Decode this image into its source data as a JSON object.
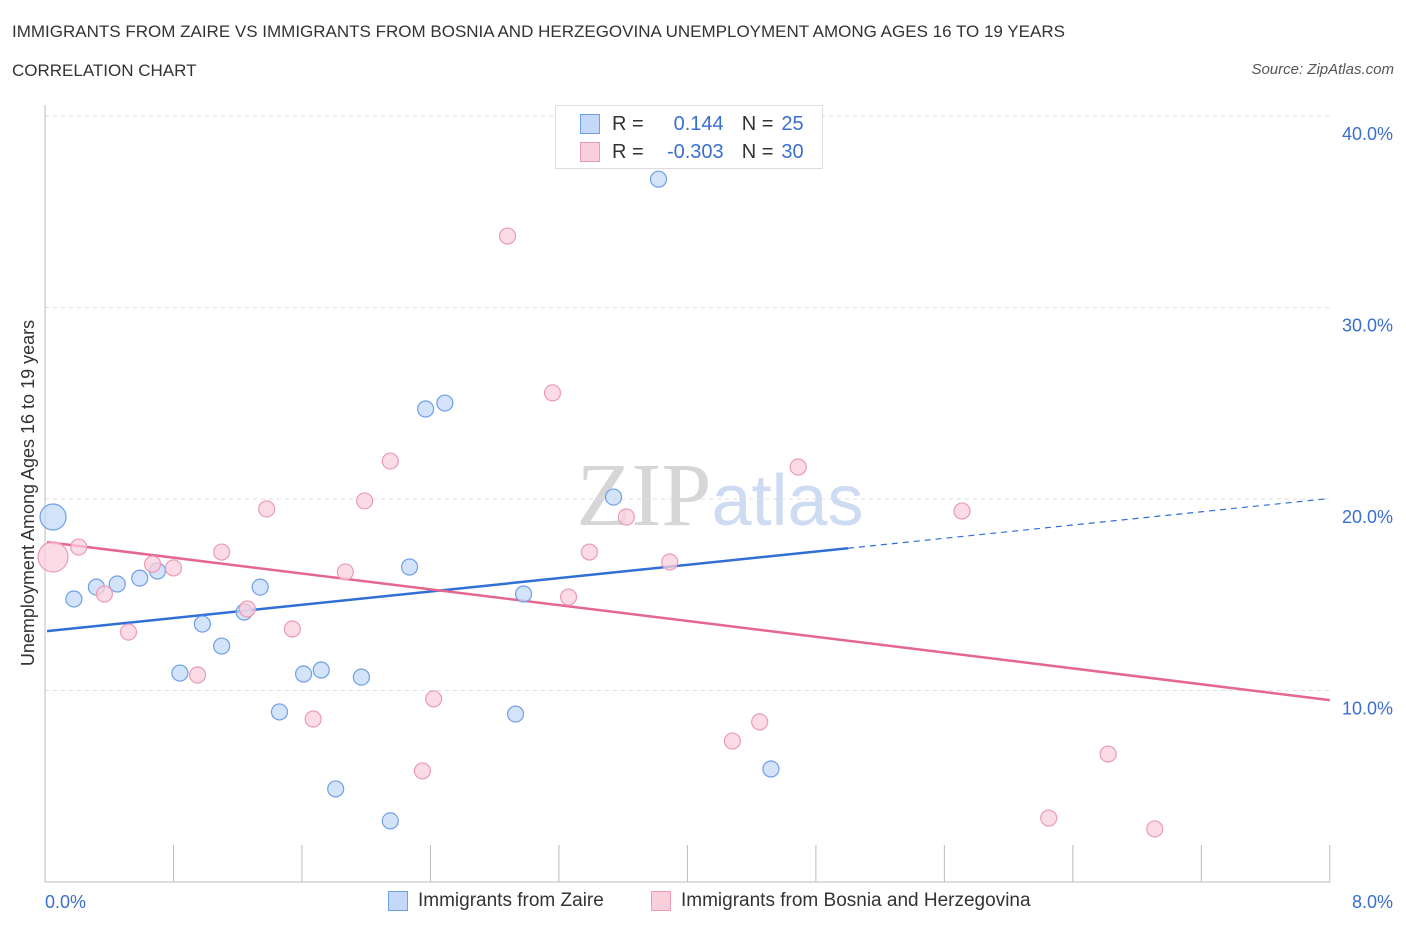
{
  "title": "IMMIGRANTS FROM ZAIRE VS IMMIGRANTS FROM BOSNIA AND HERZEGOVINA UNEMPLOYMENT AMONG AGES 16 TO 19 YEARS",
  "subtitle": "CORRELATION CHART",
  "source": "Source: ZipAtlas.com",
  "watermark": "ZIPatlas",
  "legend": [
    {
      "r_label": "R =",
      "r": "0.144",
      "n_label": "N =",
      "n": "25"
    },
    {
      "r_label": "R =",
      "r": "-0.303",
      "n_label": "N =",
      "n": "30"
    }
  ],
  "chart_data": {
    "type": "scatter",
    "title": "IMMIGRANTS FROM ZAIRE VS IMMIGRANTS FROM BOSNIA AND HERZEGOVINA UNEMPLOYMENT AMONG AGES 16 TO 19 YEARS",
    "ylabel": "Unemployment Among Ages 16 to 19 years",
    "xlabel": "",
    "xlim": [
      0,
      8
    ],
    "ylim": [
      0,
      40
    ],
    "x_tick_labels": [
      "0.0%",
      "8.0%"
    ],
    "y_tick_labels": [
      "10.0%",
      "20.0%",
      "30.0%",
      "40.0%"
    ],
    "y_ticks": [
      10,
      20,
      30,
      40
    ],
    "grid": true,
    "legend_placement": "bottom",
    "series": [
      {
        "name": "Immigrants from Zaire",
        "color": "#6f9fe8",
        "fill": "#c4d9f7",
        "line_color": "#2f6fd6",
        "trend": {
          "x0": 0,
          "y0": 13.1,
          "x_solid_end": 5.0,
          "x1": 7.97,
          "y1": 20.0
        },
        "points": [
          [
            0.05,
            19.06
          ],
          [
            0.18,
            14.78
          ],
          [
            0.32,
            15.4
          ],
          [
            0.45,
            15.56
          ],
          [
            0.59,
            15.87
          ],
          [
            0.7,
            16.24
          ],
          [
            0.84,
            10.91
          ],
          [
            0.98,
            13.47
          ],
          [
            1.1,
            12.32
          ],
          [
            1.24,
            14.1
          ],
          [
            1.34,
            15.4
          ],
          [
            1.46,
            8.88
          ],
          [
            1.61,
            10.86
          ],
          [
            1.72,
            11.07
          ],
          [
            1.81,
            4.86
          ],
          [
            1.97,
            10.7
          ],
          [
            2.15,
            3.19
          ],
          [
            2.27,
            16.45
          ],
          [
            2.37,
            24.7
          ],
          [
            2.49,
            25.01
          ],
          [
            2.93,
            8.77
          ],
          [
            2.98,
            15.04
          ],
          [
            3.54,
            20.1
          ],
          [
            3.82,
            36.7
          ],
          [
            4.52,
            5.9
          ]
        ]
      },
      {
        "name": "Immigrants from Bosnia and Herzegovina",
        "color": "#ec9ab5",
        "fill": "#f9cfdc",
        "line_color": "#e5668f",
        "trend": {
          "x0": 0,
          "y0": 17.75,
          "x1": 8.0,
          "y1": 9.5
        },
        "points": [
          [
            0.05,
            16.97
          ],
          [
            0.21,
            17.49
          ],
          [
            0.37,
            15.04
          ],
          [
            0.52,
            13.05
          ],
          [
            0.67,
            16.6
          ],
          [
            0.8,
            16.4
          ],
          [
            0.95,
            10.81
          ],
          [
            1.1,
            17.23
          ],
          [
            1.26,
            14.26
          ],
          [
            1.38,
            19.48
          ],
          [
            1.54,
            13.21
          ],
          [
            1.67,
            8.51
          ],
          [
            1.87,
            16.19
          ],
          [
            1.99,
            19.9
          ],
          [
            2.15,
            21.98
          ],
          [
            2.35,
            5.8
          ],
          [
            2.42,
            9.56
          ],
          [
            2.88,
            33.73
          ],
          [
            3.16,
            25.54
          ],
          [
            3.26,
            14.88
          ],
          [
            3.39,
            17.23
          ],
          [
            3.62,
            19.06
          ],
          [
            3.89,
            16.71
          ],
          [
            4.28,
            7.36
          ],
          [
            4.45,
            8.36
          ],
          [
            4.69,
            21.67
          ],
          [
            5.71,
            19.37
          ],
          [
            6.25,
            3.34
          ],
          [
            6.62,
            6.68
          ],
          [
            6.91,
            2.77
          ]
        ]
      }
    ]
  }
}
